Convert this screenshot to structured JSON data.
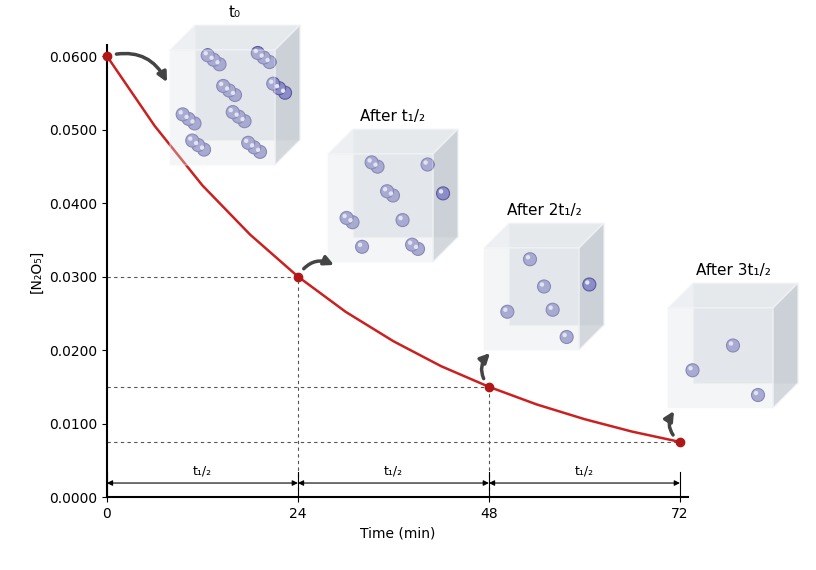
{
  "chart_data": {
    "type": "line",
    "x_label": "Time (min)",
    "y_label": "[N₂O₅]",
    "x": [
      0,
      6,
      12,
      18,
      24,
      30,
      36,
      42,
      48,
      54,
      60,
      66,
      72
    ],
    "values": [
      0.06,
      0.0505,
      0.0424,
      0.0357,
      0.03,
      0.0252,
      0.0212,
      0.0178,
      0.015,
      0.0126,
      0.0106,
      0.0089,
      0.0075
    ],
    "color": "#cc2020",
    "marker": "o",
    "points": {
      "x": [
        0,
        24,
        48,
        72
      ],
      "values": [
        0.06,
        0.03,
        0.015,
        0.0075
      ]
    },
    "xlim": [
      0,
      73
    ],
    "ylim": [
      0,
      0.0615
    ],
    "xticks": [
      0,
      24,
      48,
      72
    ],
    "yticks": [
      {
        "value": 0,
        "label": "0.0000"
      },
      {
        "value": 0.01,
        "label": "0.0100"
      },
      {
        "value": 0.02,
        "label": "0.0200"
      },
      {
        "value": 0.03,
        "label": "0.0300"
      },
      {
        "value": 0.04,
        "label": "0.0400"
      },
      {
        "value": 0.05,
        "label": "0.0500"
      },
      {
        "value": 0.06,
        "label": "0.0600"
      }
    ],
    "half_life_label": "t₁/₂",
    "snapshots": [
      {
        "label": "t₀",
        "molecules": 24
      },
      {
        "label": "After t₁/₂",
        "molecules": 12
      },
      {
        "label": "After 2t₁/₂",
        "molecules": 6
      },
      {
        "label": "After 3t₁/₂",
        "molecules": 3
      }
    ]
  }
}
